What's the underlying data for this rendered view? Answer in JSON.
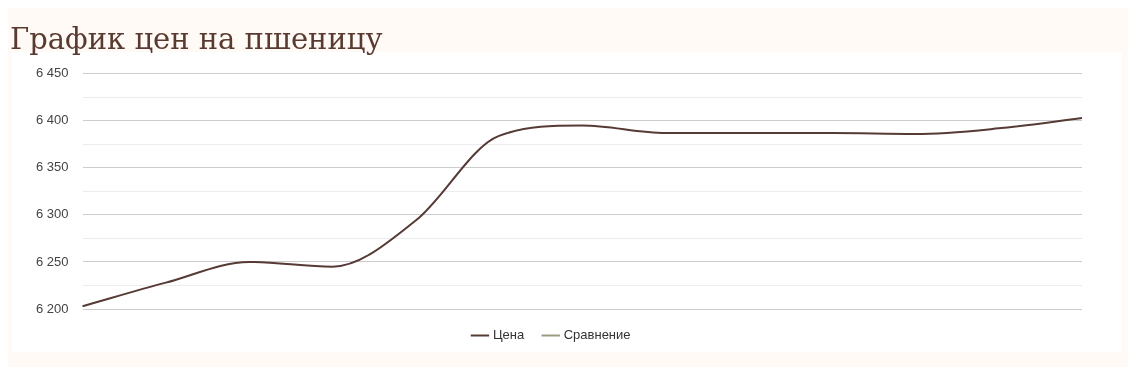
{
  "chart_data": {
    "type": "line",
    "title": "График цен на пшеницу",
    "categories": [
      null,
      null,
      null,
      null,
      null,
      null,
      null,
      null,
      null,
      null,
      null,
      null,
      null
    ],
    "series": [
      {
        "name": "Цена",
        "color": "#553a35",
        "values": [
          6203,
          6228,
          6250,
          6245,
          6294,
          6384,
          6395,
          6387,
          6387,
          6387,
          6386,
          6392,
          6403
        ]
      },
      {
        "name": "Сравнение",
        "color": "#9a9b80",
        "values": [
          null,
          null,
          null,
          null,
          null,
          null,
          null,
          null,
          null,
          null,
          null,
          null,
          null
        ]
      }
    ],
    "ylim": [
      6200,
      6450
    ],
    "yticks": [
      {
        "value": 6200,
        "label": "6 200"
      },
      {
        "value": 6225,
        "label": null
      },
      {
        "value": 6250,
        "label": "6 250"
      },
      {
        "value": 6275,
        "label": null
      },
      {
        "value": 6300,
        "label": "6 300"
      },
      {
        "value": 6325,
        "label": null
      },
      {
        "value": 6350,
        "label": "6 350"
      },
      {
        "value": 6375,
        "label": null
      },
      {
        "value": 6400,
        "label": "6 400"
      },
      {
        "value": 6425,
        "label": null
      },
      {
        "value": 6450,
        "label": "6 450"
      }
    ],
    "grid": "y",
    "legend": "bottom",
    "marker": "none",
    "line_style": "solid",
    "tick_labels": "y"
  }
}
